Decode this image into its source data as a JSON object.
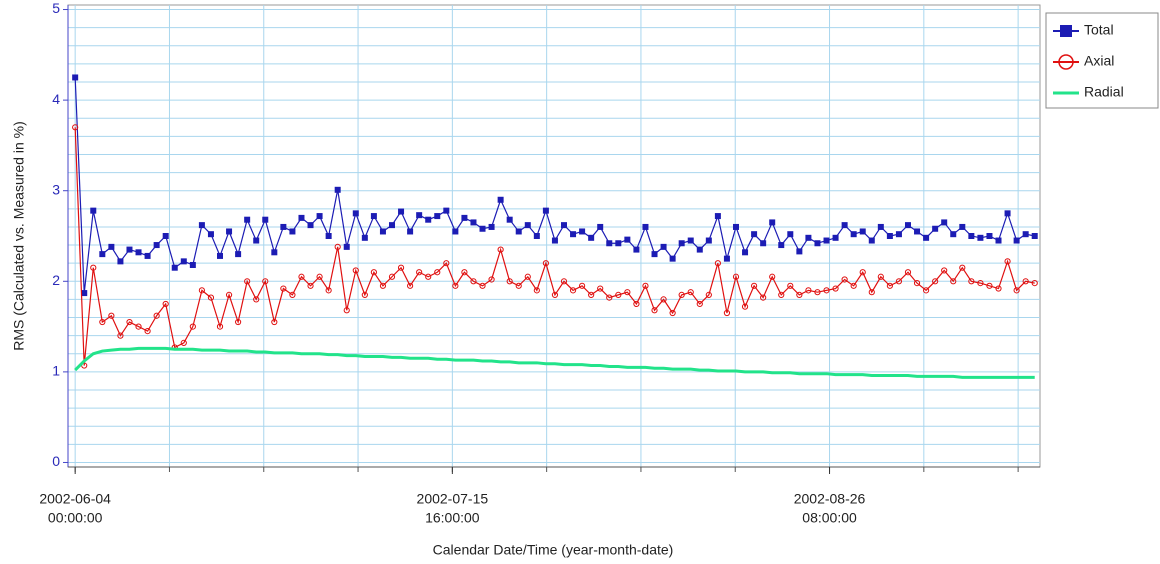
{
  "chart_data": {
    "type": "line",
    "ylabel": "RMS (Calculated vs. Measured in %)",
    "xlabel": "Calendar Date/Time (year-month-date)",
    "x": [
      "2002-06-04",
      "2002-06-05",
      "2002-06-06",
      "2002-06-07",
      "2002-06-08",
      "2002-06-09",
      "2002-06-10",
      "2002-06-11",
      "2002-06-12",
      "2002-06-13",
      "2002-06-14",
      "2002-06-15",
      "2002-06-16",
      "2002-06-17",
      "2002-06-18",
      "2002-06-19",
      "2002-06-20",
      "2002-06-21",
      "2002-06-22",
      "2002-06-23",
      "2002-06-24",
      "2002-06-25",
      "2002-06-26",
      "2002-06-27",
      "2002-06-28",
      "2002-06-29",
      "2002-06-30",
      "2002-07-01",
      "2002-07-02",
      "2002-07-03",
      "2002-07-04",
      "2002-07-05",
      "2002-07-06",
      "2002-07-07",
      "2002-07-08",
      "2002-07-09",
      "2002-07-10",
      "2002-07-11",
      "2002-07-12",
      "2002-07-13",
      "2002-07-14",
      "2002-07-15",
      "2002-07-16",
      "2002-07-17",
      "2002-07-18",
      "2002-07-19",
      "2002-07-20",
      "2002-07-21",
      "2002-07-22",
      "2002-07-23",
      "2002-07-24",
      "2002-07-25",
      "2002-07-26",
      "2002-07-27",
      "2002-07-28",
      "2002-07-29",
      "2002-07-30",
      "2002-07-31",
      "2002-08-01",
      "2002-08-02",
      "2002-08-03",
      "2002-08-04",
      "2002-08-05",
      "2002-08-06",
      "2002-08-07",
      "2002-08-08",
      "2002-08-09",
      "2002-08-10",
      "2002-08-11",
      "2002-08-12",
      "2002-08-13",
      "2002-08-14",
      "2002-08-15",
      "2002-08-16",
      "2002-08-17",
      "2002-08-18",
      "2002-08-19",
      "2002-08-20",
      "2002-08-21",
      "2002-08-22",
      "2002-08-23",
      "2002-08-24",
      "2002-08-25",
      "2002-08-26",
      "2002-08-27",
      "2002-08-28",
      "2002-08-29",
      "2002-08-30",
      "2002-08-31",
      "2002-09-01",
      "2002-09-02",
      "2002-09-03",
      "2002-09-04",
      "2002-09-05",
      "2002-09-06",
      "2002-09-07",
      "2002-09-08",
      "2002-09-09",
      "2002-09-10",
      "2002-09-11",
      "2002-09-12",
      "2002-09-13",
      "2002-09-14",
      "2002-09-15",
      "2002-09-16",
      "2002-09-17",
      "2002-09-18"
    ],
    "series": [
      {
        "name": "Total",
        "color": "#1c1cb4",
        "marker": "square",
        "values": [
          4.25,
          1.87,
          2.78,
          2.3,
          2.38,
          2.22,
          2.35,
          2.32,
          2.28,
          2.4,
          2.5,
          2.15,
          2.22,
          2.18,
          2.62,
          2.52,
          2.28,
          2.55,
          2.3,
          2.68,
          2.45,
          2.68,
          2.32,
          2.6,
          2.55,
          2.7,
          2.62,
          2.72,
          2.5,
          3.01,
          2.38,
          2.75,
          2.48,
          2.72,
          2.55,
          2.62,
          2.77,
          2.55,
          2.73,
          2.68,
          2.72,
          2.78,
          2.55,
          2.7,
          2.65,
          2.58,
          2.6,
          2.9,
          2.68,
          2.55,
          2.62,
          2.5,
          2.78,
          2.45,
          2.62,
          2.52,
          2.55,
          2.48,
          2.6,
          2.42,
          2.42,
          2.46,
          2.35,
          2.6,
          2.3,
          2.38,
          2.25,
          2.42,
          2.45,
          2.35,
          2.45,
          2.72,
          2.25,
          2.6,
          2.32,
          2.52,
          2.42,
          2.65,
          2.4,
          2.52,
          2.33,
          2.48,
          2.42,
          2.45,
          2.48,
          2.62,
          2.52,
          2.55,
          2.45,
          2.6,
          2.5,
          2.52,
          2.62,
          2.55,
          2.48,
          2.58,
          2.65,
          2.52,
          2.6,
          2.5,
          2.48,
          2.5,
          2.45,
          2.75,
          2.45,
          2.52,
          2.5
        ]
      },
      {
        "name": "Axial",
        "color": "#e01010",
        "marker": "circle",
        "values": [
          3.7,
          1.07,
          2.15,
          1.55,
          1.62,
          1.4,
          1.55,
          1.5,
          1.45,
          1.62,
          1.75,
          1.27,
          1.32,
          1.5,
          1.9,
          1.82,
          1.5,
          1.85,
          1.55,
          2.0,
          1.8,
          2.0,
          1.55,
          1.92,
          1.85,
          2.05,
          1.95,
          2.05,
          1.9,
          2.38,
          1.68,
          2.12,
          1.85,
          2.1,
          1.95,
          2.05,
          2.15,
          1.95,
          2.1,
          2.05,
          2.1,
          2.2,
          1.95,
          2.1,
          2.0,
          1.95,
          2.02,
          2.35,
          2.0,
          1.95,
          2.05,
          1.9,
          2.2,
          1.85,
          2.0,
          1.9,
          1.95,
          1.85,
          1.92,
          1.82,
          1.85,
          1.88,
          1.75,
          1.95,
          1.68,
          1.8,
          1.65,
          1.85,
          1.88,
          1.75,
          1.85,
          2.2,
          1.65,
          2.05,
          1.72,
          1.95,
          1.82,
          2.05,
          1.85,
          1.95,
          1.85,
          1.9,
          1.88,
          1.9,
          1.92,
          2.02,
          1.95,
          2.1,
          1.88,
          2.05,
          1.95,
          2.0,
          2.1,
          1.98,
          1.9,
          2.0,
          2.12,
          2.0,
          2.15,
          2.0,
          1.98,
          1.95,
          1.92,
          2.22,
          1.9,
          2.0,
          1.98
        ]
      },
      {
        "name": "Radial",
        "color": "#22e38a",
        "marker": "none",
        "values": [
          1.02,
          1.12,
          1.2,
          1.23,
          1.24,
          1.25,
          1.25,
          1.26,
          1.26,
          1.26,
          1.26,
          1.25,
          1.25,
          1.25,
          1.24,
          1.24,
          1.24,
          1.23,
          1.23,
          1.23,
          1.22,
          1.22,
          1.21,
          1.21,
          1.21,
          1.2,
          1.2,
          1.2,
          1.19,
          1.19,
          1.18,
          1.18,
          1.17,
          1.17,
          1.17,
          1.16,
          1.16,
          1.15,
          1.15,
          1.15,
          1.14,
          1.14,
          1.13,
          1.13,
          1.13,
          1.12,
          1.12,
          1.11,
          1.11,
          1.1,
          1.1,
          1.1,
          1.09,
          1.09,
          1.08,
          1.08,
          1.08,
          1.07,
          1.07,
          1.06,
          1.06,
          1.05,
          1.05,
          1.05,
          1.04,
          1.04,
          1.03,
          1.03,
          1.03,
          1.02,
          1.02,
          1.01,
          1.01,
          1.01,
          1.0,
          1.0,
          1.0,
          0.99,
          0.99,
          0.99,
          0.98,
          0.98,
          0.98,
          0.98,
          0.97,
          0.97,
          0.97,
          0.97,
          0.96,
          0.96,
          0.96,
          0.96,
          0.96,
          0.95,
          0.95,
          0.95,
          0.95,
          0.95,
          0.94,
          0.94,
          0.94,
          0.94,
          0.94,
          0.94,
          0.94,
          0.94,
          0.94
        ]
      }
    ],
    "xlim": [
      "2002-06-03T05:00:00",
      "2002-09-18T14:00:00"
    ],
    "xticks": [
      {
        "value": "2002-06-04T00:00:00",
        "label": [
          "2002-06-04",
          "00:00:00"
        ]
      },
      {
        "value": "2002-07-15T16:00:00",
        "label": [
          "2002-07-15",
          "16:00:00"
        ]
      },
      {
        "value": "2002-08-26T08:00:00",
        "label": [
          "2002-08-26",
          "08:00:00"
        ]
      }
    ],
    "xgrid": [
      "2002-06-04T00:00:00",
      "2002-06-14T10:00:00",
      "2002-06-24T20:00:00",
      "2002-07-05T06:00:00",
      "2002-07-15T16:00:00",
      "2002-07-26T02:00:00",
      "2002-08-05T12:00:00",
      "2002-08-15T22:00:00",
      "2002-08-26T08:00:00",
      "2002-09-05T18:00:00",
      "2002-09-16T04:00:00"
    ],
    "ylim": [
      -0.05,
      5.05
    ],
    "yticks": [
      0,
      1,
      2,
      3,
      4,
      5
    ],
    "ygrid": [
      0,
      0.2,
      0.4,
      0.6,
      0.8,
      1,
      1.2,
      1.4,
      1.6,
      1.8,
      2,
      2.2,
      2.4,
      2.6,
      2.8,
      3,
      3.2,
      3.4,
      3.6,
      3.8,
      4,
      4.2,
      4.4,
      4.6,
      4.8,
      5
    ],
    "grid": true,
    "legend": "outside-top-right"
  }
}
